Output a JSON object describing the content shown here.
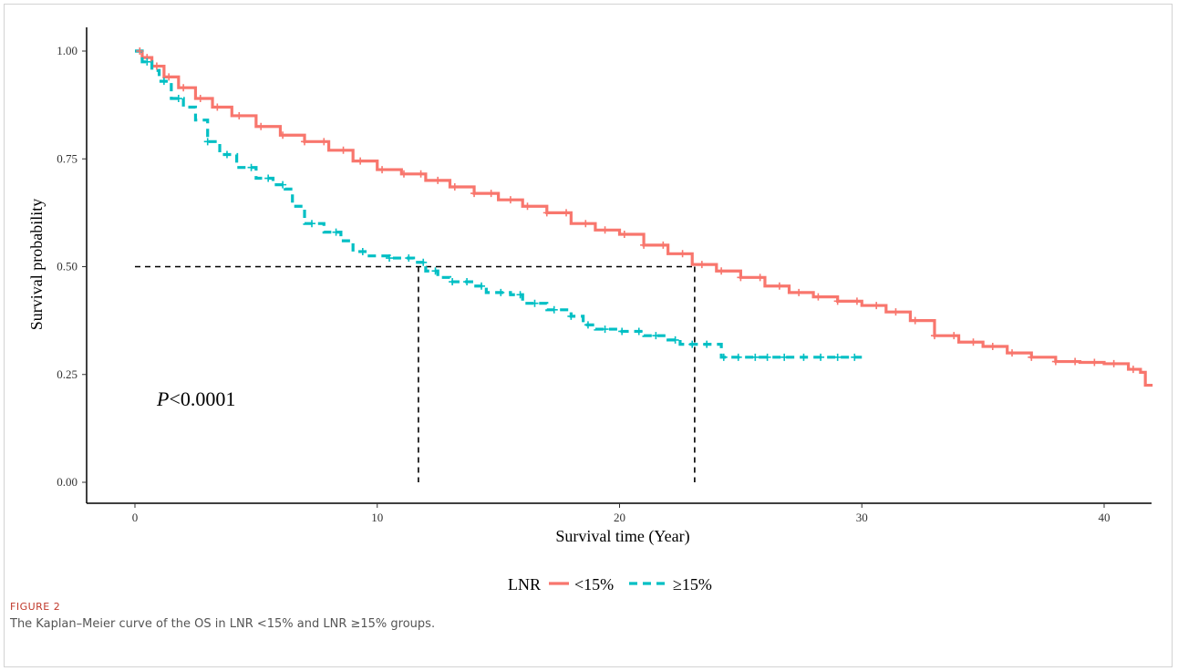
{
  "chart_data": {
    "type": "line",
    "subtype": "kaplan-meier",
    "xlabel": "Survival time (Year)",
    "ylabel": "Survival probability",
    "xlim": [
      -2,
      42
    ],
    "ylim": [
      0,
      1.02
    ],
    "x_ticks": [
      0,
      10,
      20,
      30,
      40
    ],
    "y_ticks": [
      0.0,
      0.25,
      0.5,
      0.75,
      1.0
    ],
    "y_tick_labels": [
      "0.00",
      "0.25",
      "0.50",
      "0.75",
      "1.00"
    ],
    "grid": false,
    "legend_position": "bottom",
    "legend_title": "LNR",
    "annotation": {
      "italic": "P",
      "text": "<0.0001"
    },
    "median_line": {
      "y": 0.5,
      "x_values": [
        11.7,
        23.1
      ]
    },
    "series": [
      {
        "name": "<15%",
        "color": "#F8766D",
        "linestyle": "solid",
        "points": [
          [
            0,
            1.0
          ],
          [
            0.3,
            0.985
          ],
          [
            0.7,
            0.965
          ],
          [
            1.2,
            0.94
          ],
          [
            1.8,
            0.915
          ],
          [
            2.5,
            0.89
          ],
          [
            3.2,
            0.87
          ],
          [
            4,
            0.85
          ],
          [
            5,
            0.825
          ],
          [
            6,
            0.805
          ],
          [
            7,
            0.79
          ],
          [
            8,
            0.77
          ],
          [
            9,
            0.745
          ],
          [
            10,
            0.725
          ],
          [
            11,
            0.715
          ],
          [
            12,
            0.7
          ],
          [
            13,
            0.685
          ],
          [
            14,
            0.67
          ],
          [
            15,
            0.655
          ],
          [
            16,
            0.64
          ],
          [
            17,
            0.625
          ],
          [
            18,
            0.6
          ],
          [
            19,
            0.585
          ],
          [
            20,
            0.575
          ],
          [
            21,
            0.55
          ],
          [
            22,
            0.53
          ],
          [
            23,
            0.505
          ],
          [
            24,
            0.49
          ],
          [
            25,
            0.475
          ],
          [
            26,
            0.455
          ],
          [
            27,
            0.44
          ],
          [
            28,
            0.43
          ],
          [
            29,
            0.42
          ],
          [
            30,
            0.41
          ],
          [
            31,
            0.395
          ],
          [
            32,
            0.375
          ],
          [
            33,
            0.34
          ],
          [
            34,
            0.325
          ],
          [
            35,
            0.315
          ],
          [
            36,
            0.3
          ],
          [
            37,
            0.29
          ],
          [
            38,
            0.28
          ],
          [
            39,
            0.278
          ],
          [
            40,
            0.275
          ],
          [
            41,
            0.262
          ],
          [
            41.5,
            0.255
          ],
          [
            41.7,
            0.225
          ],
          [
            42,
            0.225
          ]
        ],
        "censor_x": [
          0.2,
          0.5,
          0.9,
          1.4,
          2.0,
          2.7,
          3.4,
          4.3,
          5.2,
          6.1,
          7.0,
          7.8,
          8.6,
          9.3,
          10.2,
          11.1,
          11.8,
          12.5,
          13.2,
          14.0,
          14.7,
          15.5,
          16.2,
          17.0,
          17.8,
          18.6,
          19.4,
          20.2,
          21.0,
          21.8,
          22.6,
          23.4,
          24.2,
          25.0,
          25.8,
          26.6,
          27.4,
          28.2,
          29.0,
          29.8,
          30.6,
          31.4,
          32.2,
          33.0,
          33.8,
          34.6,
          35.4,
          36.2,
          37.0,
          38.0,
          38.8,
          39.6,
          40.4,
          41.2
        ]
      },
      {
        "name": "≥15%",
        "color": "#00BFC4",
        "linestyle": "dashed",
        "points": [
          [
            0,
            1.0
          ],
          [
            0.3,
            0.975
          ],
          [
            0.7,
            0.955
          ],
          [
            1.0,
            0.93
          ],
          [
            1.5,
            0.89
          ],
          [
            2.0,
            0.87
          ],
          [
            2.5,
            0.84
          ],
          [
            3.0,
            0.79
          ],
          [
            3.5,
            0.76
          ],
          [
            4.2,
            0.73
          ],
          [
            5.0,
            0.705
          ],
          [
            5.7,
            0.69
          ],
          [
            6.2,
            0.68
          ],
          [
            6.5,
            0.64
          ],
          [
            7.0,
            0.6
          ],
          [
            7.8,
            0.58
          ],
          [
            8.5,
            0.56
          ],
          [
            9.0,
            0.535
          ],
          [
            9.5,
            0.525
          ],
          [
            10.5,
            0.52
          ],
          [
            11.5,
            0.51
          ],
          [
            12.0,
            0.49
          ],
          [
            12.5,
            0.475
          ],
          [
            13.0,
            0.465
          ],
          [
            14.0,
            0.455
          ],
          [
            14.5,
            0.44
          ],
          [
            15.5,
            0.435
          ],
          [
            16.0,
            0.415
          ],
          [
            17.0,
            0.4
          ],
          [
            18.0,
            0.385
          ],
          [
            18.5,
            0.365
          ],
          [
            19.0,
            0.355
          ],
          [
            20.0,
            0.35
          ],
          [
            21.0,
            0.34
          ],
          [
            22.0,
            0.33
          ],
          [
            22.5,
            0.32
          ],
          [
            24.0,
            0.32
          ],
          [
            24.2,
            0.29
          ],
          [
            30.0,
            0.29
          ]
        ],
        "censor_x": [
          0.5,
          1.2,
          1.8,
          3.0,
          3.8,
          4.8,
          5.5,
          6.1,
          7.3,
          8.3,
          9.4,
          10.5,
          11.3,
          11.9,
          12.4,
          13.1,
          13.7,
          14.3,
          15.1,
          15.9,
          16.5,
          17.3,
          18.0,
          18.7,
          19.4,
          20.1,
          20.8,
          21.5,
          22.3,
          23.0,
          23.6,
          24.3,
          24.9,
          25.6,
          26.1,
          26.8,
          27.6,
          28.3,
          29.0,
          29.7
        ]
      }
    ]
  },
  "figure": {
    "label": "FIGURE 2",
    "caption": "The Kaplan–Meier curve of the OS in LNR <15% and LNR ≥15% groups."
  }
}
